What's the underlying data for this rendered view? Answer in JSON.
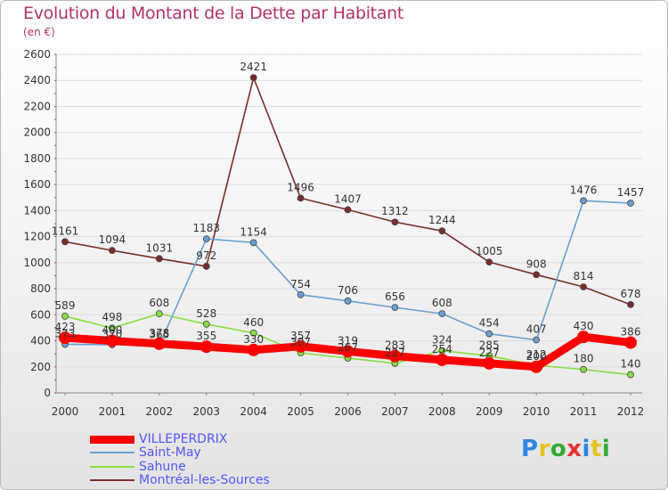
{
  "title": "Evolution du Montant de la Dette par Habitant",
  "unit": "(en €)",
  "logo_text": "Proxiti",
  "chart_data": {
    "type": "line",
    "title": "Evolution du Montant de la Dette par Habitant",
    "ylabel": "(en €)",
    "xlabel": "",
    "x": [
      2000,
      2001,
      2002,
      2003,
      2004,
      2005,
      2006,
      2007,
      2008,
      2009,
      2010,
      2011,
      2012
    ],
    "ylim": [
      0,
      2600
    ],
    "yticks": [
      0,
      200,
      400,
      600,
      800,
      1000,
      1200,
      1400,
      1600,
      1800,
      2000,
      2200,
      2400,
      2600
    ],
    "grid": "horizontal",
    "legend_position": "bottom-left",
    "series": [
      {
        "name": "VILLEPERDRIX",
        "color": "#ff0000",
        "values": [
          423,
          400,
          378,
          355,
          330,
          357,
          319,
          283,
          254,
          227,
          200,
          430,
          386
        ]
      },
      {
        "name": "Saint-May",
        "color": "#6a9fcf",
        "values": [
          373,
          370,
          365,
          1183,
          1154,
          754,
          706,
          656,
          608,
          454,
          407,
          1476,
          1457
        ]
      },
      {
        "name": "Sahune",
        "color": "#88dd44",
        "values": [
          589,
          498,
          608,
          528,
          460,
          307,
          267,
          227,
          324,
          285,
          212,
          180,
          140
        ]
      },
      {
        "name": "Montréal-les-Sources",
        "color": "#7a2d2d",
        "values": [
          1161,
          1094,
          1031,
          972,
          2421,
          1496,
          1407,
          1312,
          1244,
          1005,
          908,
          814,
          678
        ]
      }
    ],
    "label_texts": {
      "VILLEPERDRIX": [
        "423",
        "400",
        "378",
        "355",
        "330",
        "357",
        "319",
        "283",
        "254",
        "227",
        "200",
        "430",
        "386"
      ],
      "Saint-May": [
        "373",
        "370",
        "365",
        "1183",
        "1154",
        "754",
        "706",
        "656",
        "608",
        "454",
        "407",
        "1476",
        "1457"
      ],
      "Sahune": [
        "589",
        "498",
        "608",
        "528",
        "460",
        "307",
        "267",
        "227",
        "324",
        "285",
        "212",
        "180",
        "140"
      ],
      "Montréal-les-Sources": [
        "1161",
        "1094",
        "1031",
        "972",
        "2421",
        "1496",
        "1407",
        "1312",
        "1244",
        "1005",
        "908",
        "814",
        "678"
      ]
    }
  }
}
